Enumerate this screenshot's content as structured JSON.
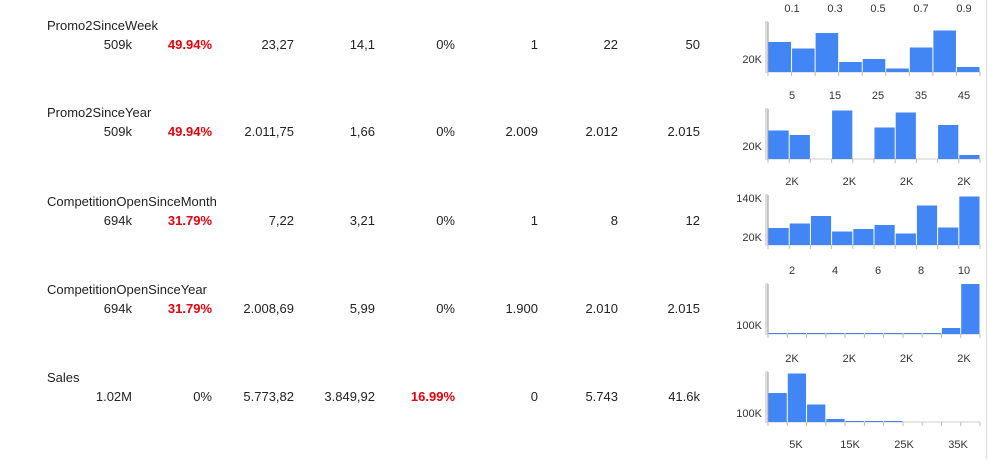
{
  "colors": {
    "bar": "#4285f4",
    "warning_text": "#e8000b",
    "axis": "#999999"
  },
  "rows": [
    {
      "name": "Promo2SinceWeek",
      "cells": [
        "509k",
        "49.94%",
        "23,27",
        "14,1",
        "0%",
        "1",
        "22",
        "50"
      ],
      "red": [
        1
      ],
      "hist": {
        "top_ticks": [
          "0.1",
          "0.3",
          "0.5",
          "0.7",
          "0.9"
        ],
        "bottom_ticks": [],
        "y_ticks": [
          "20K"
        ],
        "bars": [
          0.6,
          0.47,
          0.78,
          0.2,
          0.26,
          0.07,
          0.49,
          0.83,
          0.1
        ]
      }
    },
    {
      "name": "Promo2SinceYear",
      "cells": [
        "509k",
        "49.94%",
        "2.011,75",
        "1,66",
        "0%",
        "2.009",
        "2.012",
        "2.015"
      ],
      "red": [
        1
      ],
      "hist": {
        "top_ticks": [
          "5",
          "15",
          "25",
          "35",
          "45"
        ],
        "bottom_ticks": [],
        "y_ticks": [
          "20K"
        ],
        "bars": [
          0.57,
          0.48,
          0,
          0.97,
          0,
          0.63,
          0.93,
          0,
          0.68,
          0.08
        ]
      }
    },
    {
      "name": "CompetitionOpenSinceMonth",
      "cells": [
        "694k",
        "31.79%",
        "7,22",
        "3,21",
        "0%",
        "1",
        "8",
        "12"
      ],
      "red": [
        1
      ],
      "hist": {
        "top_ticks": [
          "2K",
          "2K",
          "2K",
          "2K"
        ],
        "bottom_ticks": [],
        "y_ticks": [
          "140K",
          "20K"
        ],
        "bars": [
          0.34,
          0.43,
          0.58,
          0.27,
          0.32,
          0.4,
          0.23,
          0.79,
          0.35,
          0.97
        ]
      }
    },
    {
      "name": "CompetitionOpenSinceYear",
      "cells": [
        "694k",
        "31.79%",
        "2.008,69",
        "5,99",
        "0%",
        "1.900",
        "2.010",
        "2.015"
      ],
      "red": [
        1
      ],
      "hist": {
        "top_ticks": [
          "2",
          "4",
          "6",
          "8",
          "10"
        ],
        "bottom_ticks": [],
        "y_ticks": [
          "100K"
        ],
        "bars": [
          0.01,
          0.01,
          0.01,
          0.01,
          0.01,
          0.01,
          0.01,
          0.01,
          0.01,
          0.12,
          1.0
        ]
      }
    },
    {
      "name": "Sales",
      "cells": [
        "1.02M",
        "0%",
        "5.773,82",
        "3.849,92",
        "16.99%",
        "0",
        "5.743",
        "41.6k"
      ],
      "red": [
        4
      ],
      "hist": {
        "top_ticks": [
          "2K",
          "2K",
          "2K",
          "2K"
        ],
        "bottom_ticks": [
          "5K",
          "15K",
          "25K",
          "35K"
        ],
        "y_ticks": [
          "100K"
        ],
        "bars": [
          0.58,
          0.97,
          0.35,
          0.06,
          0.02,
          0.01,
          0.01,
          0,
          0,
          0,
          0
        ]
      }
    }
  ]
}
